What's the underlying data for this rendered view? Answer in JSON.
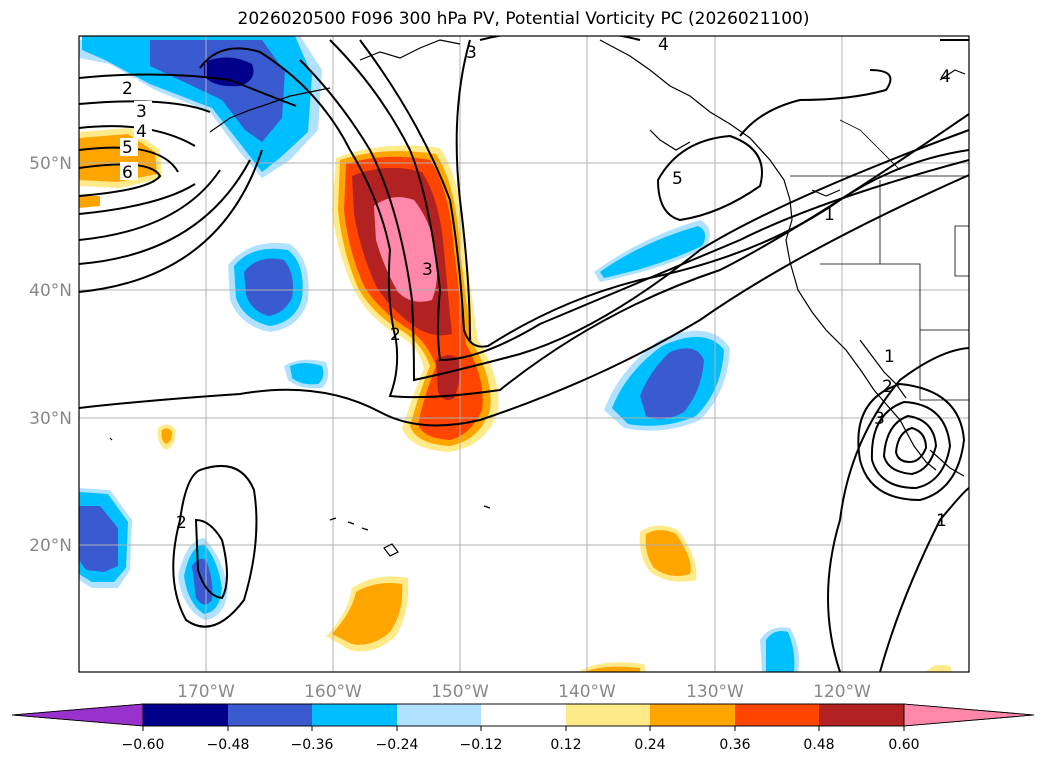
{
  "title": "2026020500 F096 300 hPa PV, Potential Vorticity PC (2026021100)",
  "map": {
    "lon_range": [
      -180,
      -110
    ],
    "lat_range": [
      10,
      60
    ],
    "lon_ticks": [
      {
        "value": -170,
        "label": "170°W"
      },
      {
        "value": -160,
        "label": "160°W"
      },
      {
        "value": -150,
        "label": "150°W"
      },
      {
        "value": -140,
        "label": "140°W"
      },
      {
        "value": -130,
        "label": "130°W"
      },
      {
        "value": -120,
        "label": "120°W"
      }
    ],
    "lat_ticks": [
      {
        "value": 50,
        "label": "50°N"
      },
      {
        "value": 40,
        "label": "40°N"
      },
      {
        "value": 30,
        "label": "30°N"
      },
      {
        "value": 20,
        "label": "20°N"
      }
    ],
    "gridlines": true,
    "contour_labels": [
      "2",
      "3",
      "4",
      "5",
      "6",
      "3",
      "2",
      "5",
      "1",
      "1",
      "2",
      "3",
      "1",
      "2",
      "3",
      "4",
      "4"
    ]
  },
  "colorbar": {
    "ticks": [
      "−0.60",
      "−0.48",
      "−0.36",
      "−0.24",
      "−0.12",
      "0.12",
      "0.24",
      "0.36",
      "0.48",
      "0.60"
    ],
    "colors": [
      "#9932cc",
      "#00008b",
      "#3a5bcf",
      "#00bfff",
      "#b0e2ff",
      "#ffffff",
      "#ffea8a",
      "#ffa500",
      "#ff4500",
      "#b22222",
      "#ff88aa"
    ],
    "extend": "both"
  }
}
